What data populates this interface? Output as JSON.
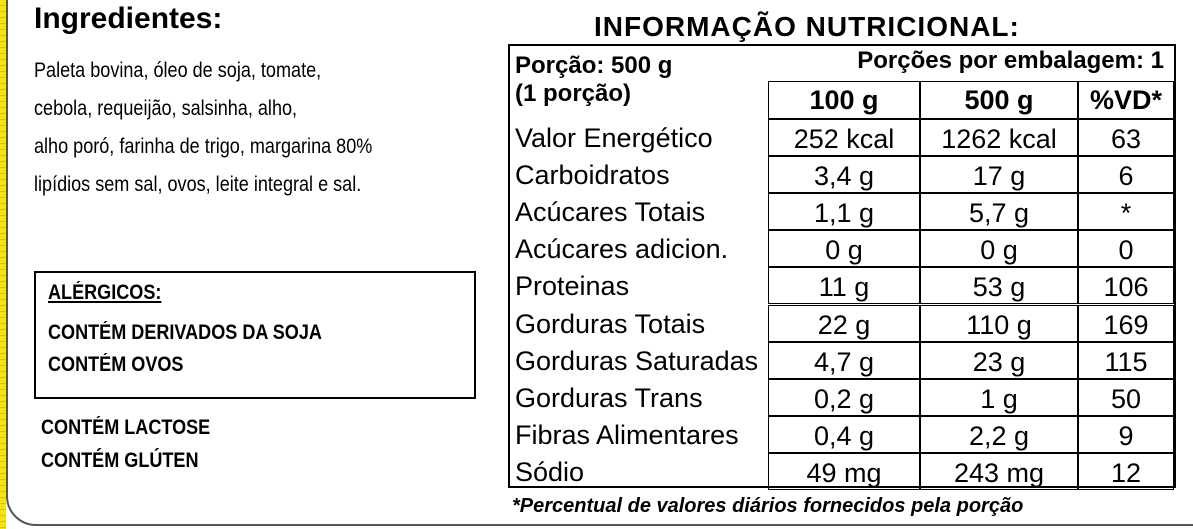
{
  "ingredients": {
    "title": "Ingredientes:",
    "lines": [
      "Paleta bovina, óleo de soja, tomate,",
      "cebola, requeijão, salsinha, alho,",
      "alho poró, farinha de trigo, margarina 80%",
      "lipídios sem sal, ovos, leite integral e sal."
    ]
  },
  "allergens": {
    "title": "ALÉRGICOS:",
    "lines": [
      "CONTÉM DERIVADOS DA SOJA",
      "CONTÉM OVOS"
    ]
  },
  "extra_notes": [
    "CONTÉM LACTOSE",
    "CONTÉM GLÚTEN"
  ],
  "nutrition": {
    "title": "INFORMAÇÃO NUTRICIONAL:",
    "serving": "Porção: 500 g",
    "serving_sub": "(1 porção)",
    "servings_per_package": "Porções por embalagem: 1",
    "columns": [
      "100 g",
      "500 g",
      "%VD*"
    ],
    "rows": [
      {
        "label": "Valor Energético",
        "v100": "252 kcal",
        "v500": "1262 kcal",
        "vd": "63"
      },
      {
        "label": "Carboidratos",
        "v100": "3,4 g",
        "v500": "17 g",
        "vd": "6"
      },
      {
        "label": "Acúcares Totais",
        "v100": "1,1 g",
        "v500": "5,7 g",
        "vd": "*"
      },
      {
        "label": "Acúcares adicion.",
        "v100": "0 g",
        "v500": "0 g",
        "vd": "0"
      },
      {
        "label": "Proteinas",
        "v100": "11 g",
        "v500": "53 g",
        "vd": "106"
      },
      {
        "label": "Gorduras Totais",
        "v100": "22 g",
        "v500": "110 g",
        "vd": "169"
      },
      {
        "label": "Gorduras Saturadas",
        "v100": "4,7 g",
        "v500": "23 g",
        "vd": "115"
      },
      {
        "label": "Gorduras Trans",
        "v100": "0,2 g",
        "v500": "1 g",
        "vd": "50"
      },
      {
        "label": "Fibras Alimentares",
        "v100": "0,4 g",
        "v500": "2,2 g",
        "vd": "9"
      },
      {
        "label": "Sódio",
        "v100": "49 mg",
        "v500": "243 mg",
        "vd": "12"
      }
    ],
    "footnote": "*Percentual de valores diários fornecidos pela porção"
  }
}
